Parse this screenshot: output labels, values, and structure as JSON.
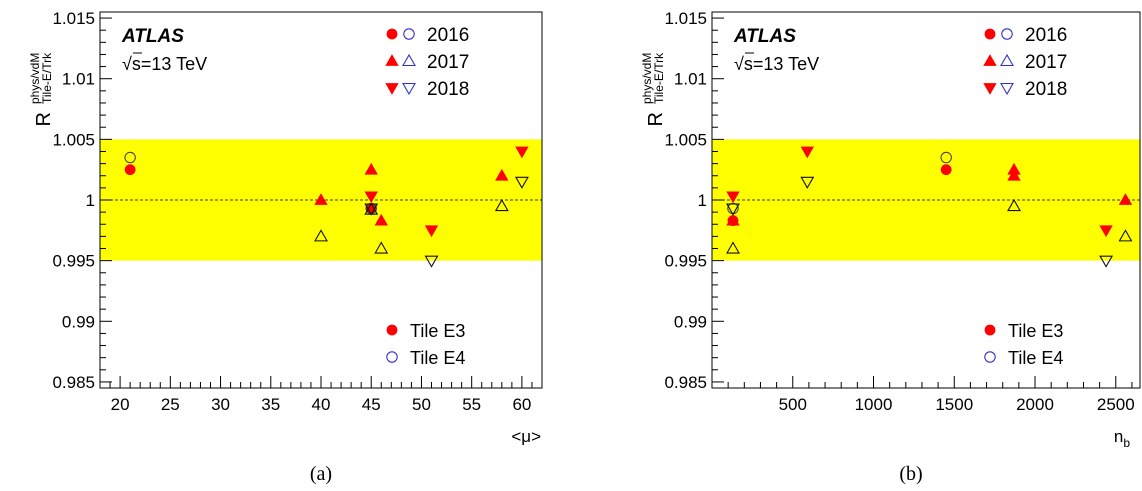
{
  "colors": {
    "band": "#ffff00",
    "e3": "#ff0000",
    "e4_2016": "#3333cc",
    "e4_2017": "#3333cc",
    "e4_2018": "#3333cc",
    "marker_outline": "#000000"
  },
  "shared": {
    "brand": "ATLAS",
    "energy_sqrt": "s",
    "energy_rest": "=13 TeV",
    "years": [
      "2016",
      "2017",
      "2018"
    ],
    "ylabel_main": "R",
    "ylabel_sup": "phys/vdM",
    "ylabel_sub": "Tile-E/Trk",
    "legend_e3": "Tile E3",
    "legend_e4": "Tile E4"
  },
  "chart_data": [
    {
      "type": "scatter",
      "caption": "(a)",
      "xlabel": "<μ>",
      "xlim": [
        18,
        62
      ],
      "ylim": [
        0.9845,
        1.0155
      ],
      "xticks": [
        "20",
        "25",
        "30",
        "35",
        "40",
        "45",
        "50",
        "55",
        "60"
      ],
      "xtick_values": [
        20,
        25,
        30,
        35,
        40,
        45,
        50,
        55,
        60
      ],
      "yticks": [
        "0.985",
        "0.99",
        "0.995",
        "1",
        "1.005",
        "1.01",
        "1.015"
      ],
      "ytick_values": [
        0.985,
        0.99,
        0.995,
        1.0,
        1.005,
        1.01,
        1.015
      ],
      "band": [
        0.995,
        1.005
      ],
      "reference_line": 1.0,
      "series": [
        {
          "year": "2016",
          "module": "E3",
          "points": [
            [
              21,
              1.0025
            ],
            [
              45,
              0.9993
            ]
          ]
        },
        {
          "year": "2016",
          "module": "E4",
          "points": [
            [
              21,
              1.0035
            ],
            [
              45,
              0.9993
            ]
          ]
        },
        {
          "year": "2017",
          "module": "E3",
          "points": [
            [
              40,
              1.0
            ],
            [
              45,
              1.0025
            ],
            [
              46,
              0.9983
            ],
            [
              58,
              1.002
            ]
          ]
        },
        {
          "year": "2017",
          "module": "E4",
          "points": [
            [
              40,
              0.997
            ],
            [
              45,
              0.9992
            ],
            [
              46,
              0.996
            ],
            [
              58,
              0.9995
            ]
          ]
        },
        {
          "year": "2018",
          "module": "E3",
          "points": [
            [
              45,
              1.0003
            ],
            [
              51,
              0.9975
            ],
            [
              60,
              1.004
            ]
          ]
        },
        {
          "year": "2018",
          "module": "E4",
          "points": [
            [
              45,
              0.9993
            ],
            [
              51,
              0.995
            ],
            [
              60,
              1.0015
            ]
          ]
        }
      ]
    },
    {
      "type": "scatter",
      "caption": "(b)",
      "xlabel": "n",
      "xlabel_sub": "b",
      "xlim": [
        0,
        2650
      ],
      "ylim": [
        0.9845,
        1.0155
      ],
      "xticks": [
        "500",
        "1000",
        "1500",
        "2000",
        "2500"
      ],
      "xtick_values": [
        500,
        1000,
        1500,
        2000,
        2500
      ],
      "yticks": [
        "0.985",
        "0.99",
        "0.995",
        "1",
        "1.005",
        "1.01",
        "1.015"
      ],
      "ytick_values": [
        0.985,
        0.99,
        0.995,
        1.0,
        1.005,
        1.01,
        1.015
      ],
      "band": [
        0.995,
        1.005
      ],
      "reference_line": 1.0,
      "series": [
        {
          "year": "2016",
          "module": "E3",
          "points": [
            [
              1450,
              1.0025
            ],
            [
              130,
              0.9983
            ]
          ]
        },
        {
          "year": "2016",
          "module": "E4",
          "points": [
            [
              1450,
              1.0035
            ],
            [
              130,
              0.9993
            ]
          ]
        },
        {
          "year": "2017",
          "module": "E3",
          "points": [
            [
              1870,
              1.0025
            ],
            [
              1870,
              1.002
            ],
            [
              2560,
              1.0
            ],
            [
              130,
              0.9983
            ]
          ]
        },
        {
          "year": "2017",
          "module": "E4",
          "points": [
            [
              1870,
              0.9995
            ],
            [
              2560,
              0.997
            ],
            [
              130,
              0.996
            ]
          ]
        },
        {
          "year": "2018",
          "module": "E3",
          "points": [
            [
              130,
              1.0003
            ],
            [
              590,
              1.004
            ],
            [
              2440,
              0.9975
            ]
          ]
        },
        {
          "year": "2018",
          "module": "E4",
          "points": [
            [
              130,
              0.9993
            ],
            [
              590,
              1.0015
            ],
            [
              2440,
              0.995
            ]
          ]
        }
      ]
    }
  ]
}
